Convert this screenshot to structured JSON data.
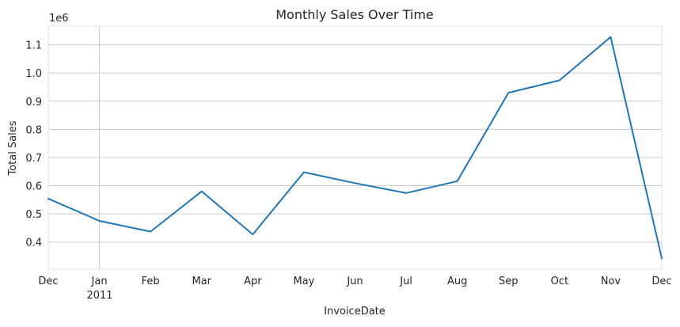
{
  "chart_data": {
    "type": "line",
    "title": "Monthly Sales Over Time",
    "xlabel": "InvoiceDate",
    "ylabel": "Total Sales",
    "y_offset_text": "1e6",
    "x": [
      "2010-12",
      "2011-01",
      "2011-02",
      "2011-03",
      "2011-04",
      "2011-05",
      "2011-06",
      "2011-07",
      "2011-08",
      "2011-09",
      "2011-10",
      "2011-11",
      "2011-12"
    ],
    "x_tick_labels": [
      "Dec",
      "Jan",
      "Feb",
      "Mar",
      "Apr",
      "May",
      "Jun",
      "Jul",
      "Aug",
      "Sep",
      "Oct",
      "Nov",
      "Dec"
    ],
    "x_year_label": "2011",
    "series": [
      {
        "values": [
          554000,
          475000,
          437000,
          580000,
          427000,
          648000,
          609000,
          574000,
          616000,
          930000,
          974000,
          1128000,
          342000
        ],
        "color": "#1f77b4"
      }
    ],
    "y_ticks": [
      0.4,
      0.5,
      0.6,
      0.7,
      0.8,
      0.9,
      1.0,
      1.1
    ],
    "y_tick_labels": [
      "0.4",
      "0.5",
      "0.6",
      "0.7",
      "0.8",
      "0.9",
      "1.0",
      "1.1"
    ],
    "ylim": [
      0.3036,
      1.1664
    ],
    "grid": true,
    "vertical_gridline_at": "2011-01"
  }
}
